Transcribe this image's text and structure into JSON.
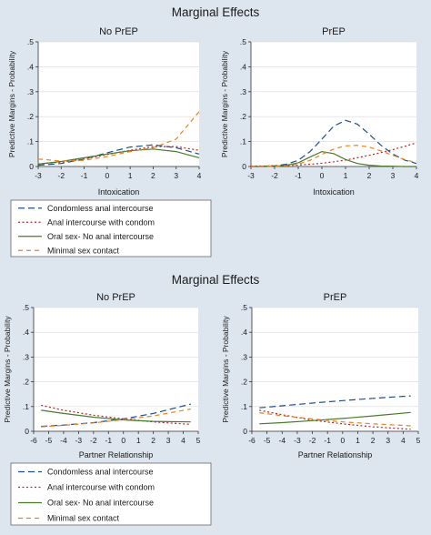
{
  "chart_data": [
    {
      "title": "Marginal Effects",
      "legend_position": "bottom",
      "legend": [
        {
          "name": "Condomless anal intercourse",
          "color": "#1f4e8c",
          "dash": "long-dash"
        },
        {
          "name": "Anal intercourse with condom",
          "color": "#b5242b",
          "dash": "dot"
        },
        {
          "name": "Oral sex- No anal intercourse",
          "color": "#4a7a2c",
          "dash": "solid"
        },
        {
          "name": "Minimal sex contact",
          "color": "#e8821e",
          "dash": "dash"
        }
      ],
      "panels": [
        {
          "type": "line",
          "subtitle": "No PrEP",
          "xlabel": "Intoxication",
          "ylabel": "Predictive Margins - Probability",
          "xlim": [
            -3,
            4
          ],
          "ylim": [
            0,
            0.5
          ],
          "xticks": [
            "-3",
            "-2",
            "-1",
            "0",
            "1",
            "2",
            "3",
            "4"
          ],
          "yticks": [
            "0",
            ".1",
            ".2",
            ".3",
            ".4",
            ".5"
          ],
          "grid": true,
          "x": [
            -3,
            -2,
            -1,
            0,
            1,
            2,
            3,
            4
          ],
          "series": [
            {
              "name": "Condomless anal intercourse",
              "values": [
                0.005,
                0.012,
                0.03,
                0.055,
                0.078,
                0.087,
                0.075,
                0.05
              ]
            },
            {
              "name": "Anal intercourse with condom",
              "values": [
                0.01,
                0.018,
                0.03,
                0.048,
                0.065,
                0.08,
                0.08,
                0.065
              ]
            },
            {
              "name": "Oral sex- No anal intercourse",
              "values": [
                0.01,
                0.02,
                0.035,
                0.05,
                0.063,
                0.07,
                0.06,
                0.035
              ]
            },
            {
              "name": "Minimal sex contact",
              "values": [
                0.03,
                0.022,
                0.025,
                0.04,
                0.06,
                0.075,
                0.11,
                0.22
              ]
            }
          ]
        },
        {
          "type": "line",
          "subtitle": "PrEP",
          "xlabel": "Intoxication",
          "ylabel": "Predictive Margins - Probability",
          "xlim": [
            -3,
            4
          ],
          "ylim": [
            0,
            0.5
          ],
          "xticks": [
            "-3",
            "-2",
            "-1",
            "0",
            "1",
            "2",
            "3",
            "4"
          ],
          "yticks": [
            "0",
            ".1",
            ".2",
            ".3",
            ".4",
            ".5"
          ],
          "grid": true,
          "x": [
            -3,
            -2.5,
            -2,
            -1.5,
            -1,
            -0.5,
            0,
            0.5,
            1,
            1.5,
            2,
            2.5,
            3,
            3.5,
            4
          ],
          "series": [
            {
              "name": "Condomless anal intercourse",
              "values": [
                0.0,
                0.001,
                0.003,
                0.009,
                0.025,
                0.06,
                0.11,
                0.162,
                0.185,
                0.17,
                0.13,
                0.085,
                0.05,
                0.026,
                0.012
              ]
            },
            {
              "name": "Anal intercourse with condom",
              "values": [
                0.002,
                0.002,
                0.003,
                0.004,
                0.006,
                0.009,
                0.013,
                0.019,
                0.026,
                0.035,
                0.045,
                0.056,
                0.068,
                0.081,
                0.095
              ]
            },
            {
              "name": "Oral sex- No anal intercourse",
              "values": [
                0.0,
                0.0,
                0.001,
                0.005,
                0.015,
                0.038,
                0.06,
                0.052,
                0.028,
                0.012,
                0.005,
                0.002,
                0.001,
                0.0,
                0.0
              ]
            },
            {
              "name": "Minimal sex contact",
              "values": [
                0.0,
                0.0,
                0.001,
                0.003,
                0.01,
                0.025,
                0.048,
                0.07,
                0.083,
                0.085,
                0.078,
                0.062,
                0.045,
                0.028,
                0.015
              ]
            }
          ]
        }
      ]
    },
    {
      "title": "Marginal Effects",
      "legend_position": "bottom",
      "legend": [
        {
          "name": "Condomless anal intercourse",
          "color": "#1f4e8c",
          "dash": "long-dash"
        },
        {
          "name": "Anal intercourse with condom",
          "color": "#b5242b",
          "dash": "dot"
        },
        {
          "name": "Oral sex- No anal intercourse",
          "color": "#4a7a2c",
          "dash": "solid"
        },
        {
          "name": "Minimal sex contact",
          "color": "#e8821e",
          "dash": "dash"
        }
      ],
      "panels": [
        {
          "type": "line",
          "subtitle": "No PrEP",
          "xlabel": "Partner Relationship",
          "ylabel": "Predictive Margins - Probability",
          "xlim": [
            -6,
            5
          ],
          "ylim": [
            0,
            0.5
          ],
          "xticks": [
            "-6",
            "-5",
            "-4",
            "-3",
            "-2",
            "-1",
            "0",
            "1",
            "2",
            "3",
            "4",
            "5"
          ],
          "yticks": [
            "0",
            ".1",
            ".2",
            ".3",
            ".4",
            ".5"
          ],
          "grid": true,
          "x": [
            -5.5,
            -4,
            -2,
            0,
            2,
            4.5
          ],
          "series": [
            {
              "name": "Condomless anal intercourse",
              "values": [
                0.02,
                0.025,
                0.035,
                0.05,
                0.072,
                0.11
              ]
            },
            {
              "name": "Anal intercourse with condom",
              "values": [
                0.105,
                0.085,
                0.065,
                0.05,
                0.038,
                0.028
              ]
            },
            {
              "name": "Oral sex- No anal intercourse",
              "values": [
                0.085,
                0.072,
                0.057,
                0.046,
                0.04,
                0.038
              ]
            },
            {
              "name": "Minimal sex contact",
              "values": [
                0.018,
                0.024,
                0.034,
                0.047,
                0.062,
                0.09
              ]
            }
          ]
        },
        {
          "type": "line",
          "subtitle": "PrEP",
          "xlabel": "Partner Relationship",
          "ylabel": "Predictive Margins - Probability",
          "xlim": [
            -6,
            5
          ],
          "ylim": [
            0,
            0.5
          ],
          "xticks": [
            "-6",
            "-5",
            "-4",
            "-3",
            "-2",
            "-1",
            "0",
            "1",
            "2",
            "3",
            "4",
            "5"
          ],
          "yticks": [
            "0",
            ".1",
            ".2",
            ".3",
            ".4",
            ".5"
          ],
          "grid": true,
          "x": [
            -5.5,
            -4,
            -2,
            0,
            2,
            4.5
          ],
          "series": [
            {
              "name": "Condomless anal intercourse",
              "values": [
                0.095,
                0.103,
                0.114,
                0.124,
                0.133,
                0.143
              ]
            },
            {
              "name": "Anal intercourse with condom",
              "values": [
                0.085,
                0.067,
                0.045,
                0.03,
                0.018,
                0.008
              ]
            },
            {
              "name": "Oral sex- No anal intercourse",
              "values": [
                0.03,
                0.035,
                0.043,
                0.052,
                0.062,
                0.076
              ]
            },
            {
              "name": "Minimal sex contact",
              "values": [
                0.075,
                0.063,
                0.05,
                0.038,
                0.03,
                0.022
              ]
            }
          ]
        }
      ]
    }
  ]
}
